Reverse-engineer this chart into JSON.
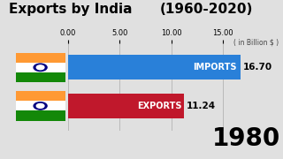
{
  "title1": "Exports by India",
  "title2": "(1960-2020)",
  "subtitle": "( in Billion $ )",
  "year_label": "1980",
  "categories": [
    "IMPORTS",
    "EXPORTS"
  ],
  "values": [
    16.7,
    11.24
  ],
  "bar_colors": [
    "#2980D9",
    "#C0182C"
  ],
  "xlim": [
    0,
    17.0
  ],
  "xticks": [
    0.0,
    5.0,
    10.0,
    15.0
  ],
  "background_color": "#E0E0E0",
  "title_color": "#000000",
  "year_color": "#000000",
  "bar_label_color": "#FFFFFF",
  "value_label_color": "#000000",
  "flag_orange": "#FF9933",
  "flag_white": "#FFFFFF",
  "flag_green": "#138808",
  "flag_navy": "#000080"
}
